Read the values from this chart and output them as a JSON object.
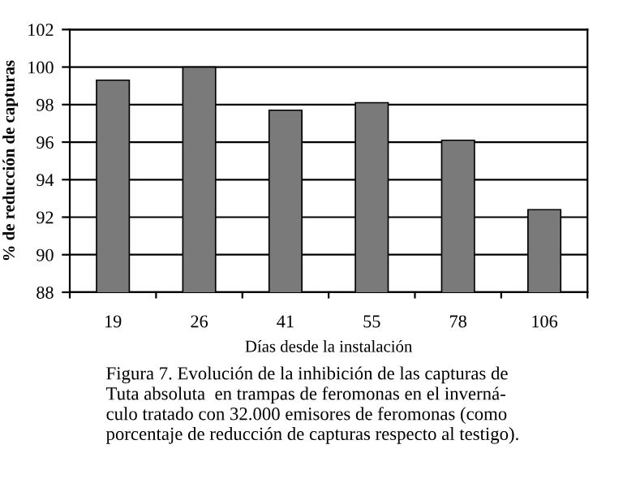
{
  "chart_data": {
    "type": "bar",
    "categories": [
      "19",
      "26",
      "41",
      "55",
      "78",
      "106"
    ],
    "values": [
      99.3,
      100.0,
      97.7,
      98.1,
      96.1,
      92.4
    ],
    "color": "#7a7a7a",
    "xlabel": "Días desde la instalación",
    "ylabel": "% de reducción de capturas",
    "ylim": [
      88,
      102
    ],
    "yticks": [
      88,
      90,
      92,
      94,
      96,
      98,
      100,
      102
    ],
    "grid": "y",
    "annotations": [
      "Figura 7. Evolución de la inhibición de las capturas de\nTuta absoluta  en trampas de feromonas en el inverná-\nculo tratado con 32.000 emisores de feromonas (como\nporcentaje de reducción de capturas respecto al testigo)."
    ]
  }
}
